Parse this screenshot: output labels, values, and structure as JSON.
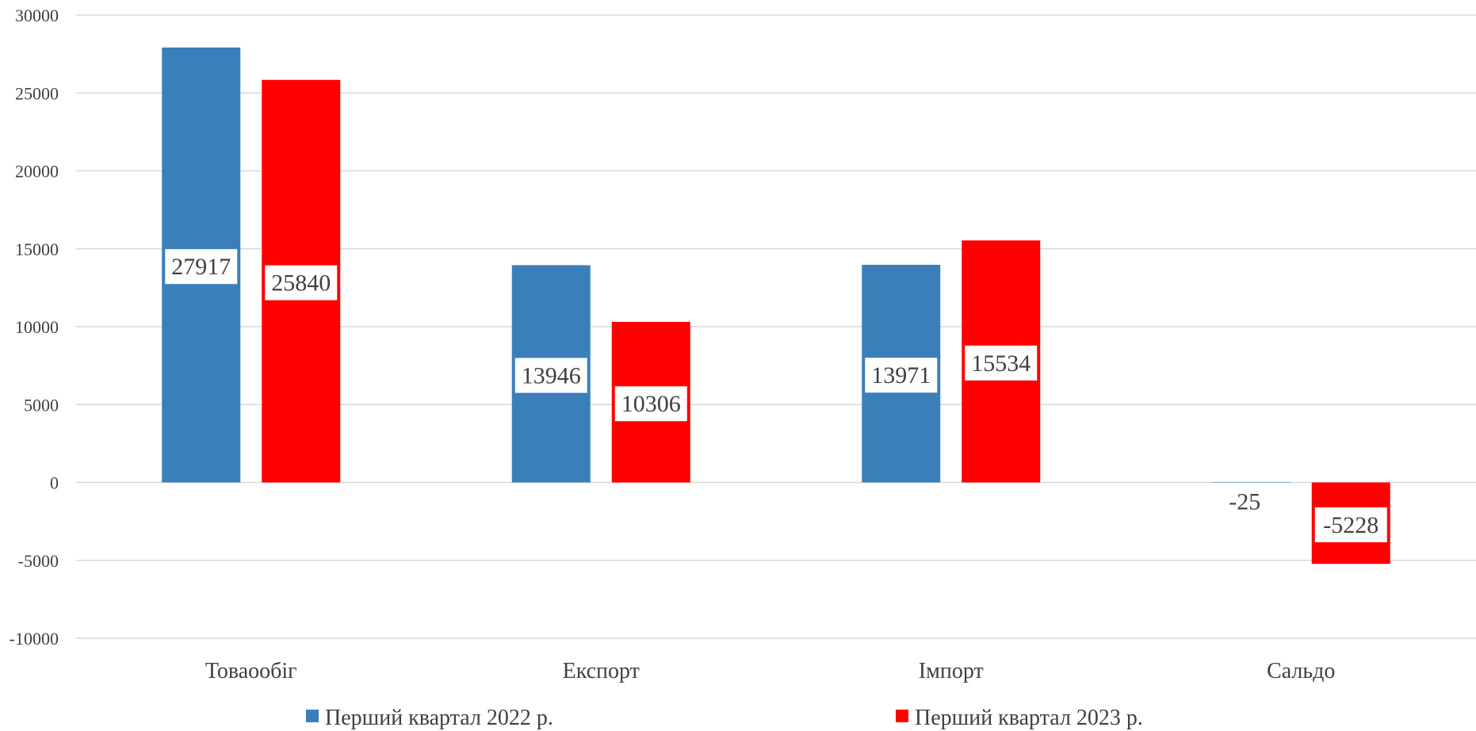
{
  "chart_data": {
    "type": "bar",
    "title": "",
    "xlabel": "",
    "ylabel": "",
    "categories": [
      "Товаообіг",
      "Експорт",
      "Імпорт",
      "Сальдо"
    ],
    "series": [
      {
        "name": "Перший квартал 2022 р.",
        "color": "#3A7FBA",
        "values": [
          27917,
          13946,
          13971,
          -25
        ]
      },
      {
        "name": "Перший квартал 2023 р.",
        "color": "#FF0000",
        "values": [
          25840,
          10306,
          15534,
          -5228
        ]
      }
    ],
    "ylim": [
      -10000,
      30000
    ],
    "yticks": [
      30000,
      25000,
      20000,
      15000,
      10000,
      5000,
      0,
      -5000,
      -10000
    ],
    "grid": true,
    "legend_position": "bottom"
  }
}
